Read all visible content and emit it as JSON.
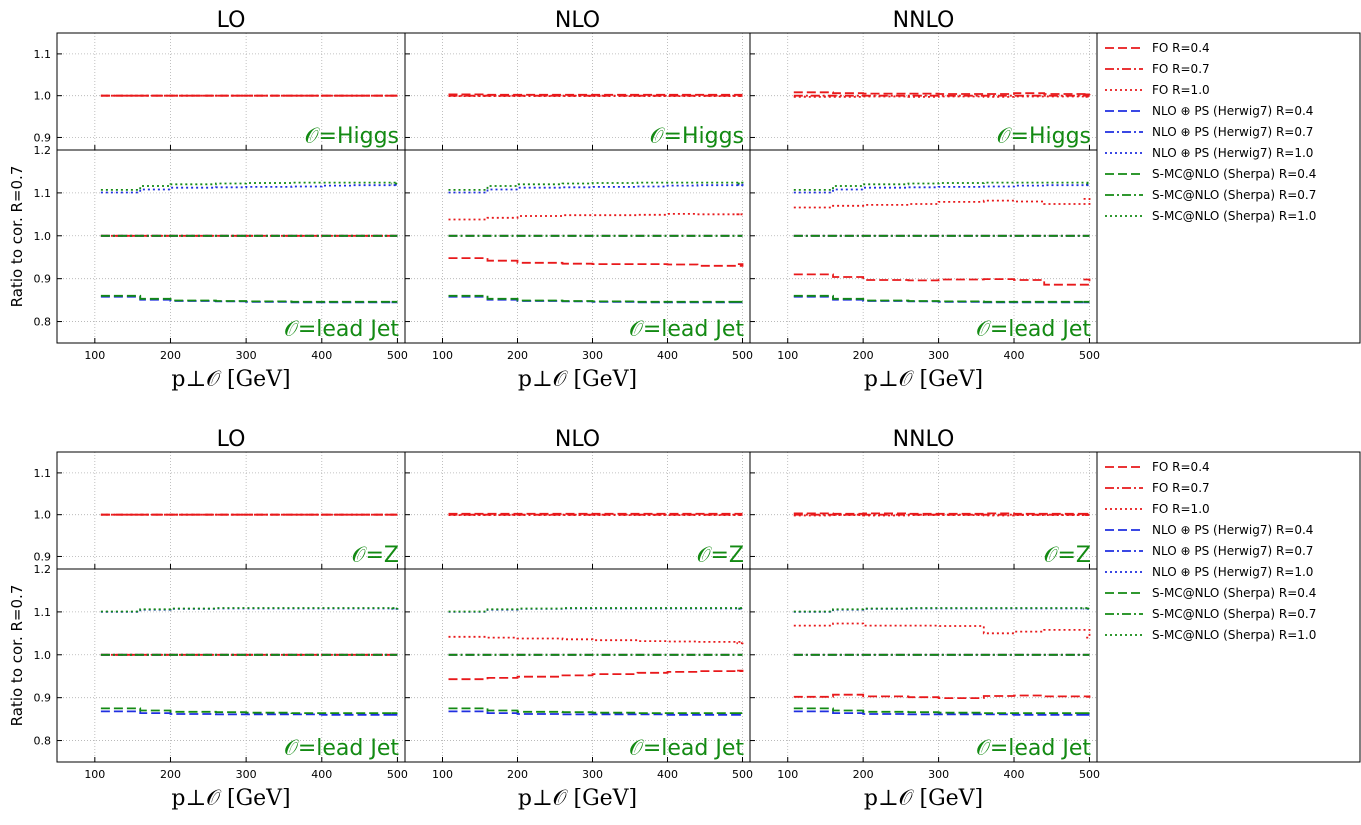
{
  "legend": {
    "entries": [
      {
        "label": "FO R=0.4",
        "color": "#e8191b",
        "dash": "dashed"
      },
      {
        "label": "FO R=0.7",
        "color": "#e8191b",
        "dash": "dashdot"
      },
      {
        "label": "FO R=1.0",
        "color": "#e8191b",
        "dash": "dotted"
      },
      {
        "label": "NLO ⊕ PS (Herwig7) R=0.4",
        "color": "#1f2fe0",
        "dash": "dashed"
      },
      {
        "label": "NLO ⊕ PS (Herwig7) R=0.7",
        "color": "#1f2fe0",
        "dash": "dashdot"
      },
      {
        "label": "NLO ⊕ PS (Herwig7) R=1.0",
        "color": "#1f2fe0",
        "dash": "dotted"
      },
      {
        "label": "S-MC@NLO (Sherpa) R=0.4",
        "color": "#138a13",
        "dash": "dashed"
      },
      {
        "label": "S-MC@NLO (Sherpa) R=0.7",
        "color": "#138a13",
        "dash": "dashdot"
      },
      {
        "label": "S-MC@NLO (Sherpa) R=1.0",
        "color": "#138a13",
        "dash": "dotted"
      }
    ]
  },
  "chart_data": [
    {
      "type": "line",
      "process": "Higgs",
      "column_titles": [
        "LO",
        "NLO",
        "NNLO"
      ],
      "ylabel": "Ratio to cor. R=0.7",
      "xlabel": "p⊥𝒪 [GeV]",
      "xlim": [
        50,
        510
      ],
      "xticks": [
        100,
        200,
        300,
        400,
        500
      ],
      "top_panel": {
        "label": "𝒪=Higgs",
        "ylim": [
          0.87,
          1.15
        ],
        "yticks": [
          0.9,
          1.0,
          1.1
        ]
      },
      "bottom_panel": {
        "label": "𝒪=lead Jet",
        "ylim": [
          0.75,
          1.2
        ],
        "yticks": [
          0.8,
          0.9,
          1.0,
          1.1,
          1.2
        ]
      },
      "x": [
        100,
        160,
        200,
        260,
        300,
        360,
        400,
        440,
        500
      ],
      "orders": {
        "LO": {
          "top": {
            "FO R=0.4": [
              1.0,
              1.0,
              1.0,
              1.0,
              1.0,
              1.0,
              1.0,
              1.0,
              1.0
            ],
            "FO R=0.7": [
              1.0,
              1.0,
              1.0,
              1.0,
              1.0,
              1.0,
              1.0,
              1.0,
              1.0
            ],
            "FO R=1.0": [
              1.0,
              1.0,
              1.0,
              1.0,
              1.0,
              1.0,
              1.0,
              1.0,
              1.0
            ]
          },
          "bottom": {
            "FO R=0.4": [
              1.0,
              1.0,
              1.0,
              1.0,
              1.0,
              1.0,
              1.0,
              1.0,
              1.0
            ],
            "FO R=0.7": [
              1.0,
              1.0,
              1.0,
              1.0,
              1.0,
              1.0,
              1.0,
              1.0,
              1.0
            ],
            "FO R=1.0": [
              1.0,
              1.0,
              1.0,
              1.0,
              1.0,
              1.0,
              1.0,
              1.0,
              1.0
            ],
            "NLO ⊕ PS (Herwig7) R=0.4": [
              0.858,
              0.851,
              0.848,
              0.847,
              0.846,
              0.845,
              0.845,
              0.845,
              0.845
            ],
            "NLO ⊕ PS (Herwig7) R=0.7": [
              1.0,
              1.0,
              1.0,
              1.0,
              1.0,
              1.0,
              1.0,
              1.0,
              1.0
            ],
            "NLO ⊕ PS (Herwig7) R=1.0": [
              1.101,
              1.108,
              1.112,
              1.113,
              1.114,
              1.115,
              1.117,
              1.118,
              1.119
            ],
            "S-MC@NLO (Sherpa) R=0.4": [
              0.86,
              0.853,
              0.849,
              0.848,
              0.847,
              0.846,
              0.846,
              0.846,
              0.846
            ],
            "S-MC@NLO (Sherpa) R=0.7": [
              1.0,
              1.0,
              1.0,
              1.0,
              1.0,
              1.0,
              1.0,
              1.0,
              1.0
            ],
            "S-MC@NLO (Sherpa) R=1.0": [
              1.107,
              1.116,
              1.12,
              1.122,
              1.123,
              1.124,
              1.124,
              1.124,
              1.122
            ]
          }
        },
        "NLO": {
          "top": {
            "FO R=0.4": [
              1.003,
              1.002,
              1.002,
              1.002,
              1.002,
              1.002,
              1.002,
              1.002,
              1.002
            ],
            "FO R=0.7": [
              1.0,
              1.0,
              1.0,
              1.0,
              1.0,
              1.0,
              1.0,
              1.0,
              1.0
            ],
            "FO R=1.0": [
              0.999,
              0.999,
              0.999,
              0.999,
              0.999,
              0.999,
              0.999,
              0.999,
              0.999
            ]
          },
          "bottom": {
            "FO R=0.4": [
              0.948,
              0.942,
              0.937,
              0.935,
              0.934,
              0.934,
              0.933,
              0.93,
              0.934
            ],
            "FO R=0.7": [
              1.0,
              1.0,
              1.0,
              1.0,
              1.0,
              1.0,
              1.0,
              1.0,
              1.0
            ],
            "FO R=1.0": [
              1.038,
              1.042,
              1.046,
              1.048,
              1.048,
              1.049,
              1.051,
              1.05,
              1.05
            ],
            "NLO ⊕ PS (Herwig7) R=0.4": [
              0.858,
              0.851,
              0.848,
              0.847,
              0.846,
              0.845,
              0.845,
              0.845,
              0.845
            ],
            "NLO ⊕ PS (Herwig7) R=0.7": [
              1.0,
              1.0,
              1.0,
              1.0,
              1.0,
              1.0,
              1.0,
              1.0,
              1.0
            ],
            "NLO ⊕ PS (Herwig7) R=1.0": [
              1.101,
              1.108,
              1.112,
              1.113,
              1.114,
              1.115,
              1.117,
              1.118,
              1.119
            ],
            "S-MC@NLO (Sherpa) R=0.4": [
              0.86,
              0.853,
              0.849,
              0.848,
              0.847,
              0.846,
              0.846,
              0.846,
              0.846
            ],
            "S-MC@NLO (Sherpa) R=0.7": [
              1.0,
              1.0,
              1.0,
              1.0,
              1.0,
              1.0,
              1.0,
              1.0,
              1.0
            ],
            "S-MC@NLO (Sherpa) R=1.0": [
              1.107,
              1.116,
              1.12,
              1.122,
              1.123,
              1.124,
              1.124,
              1.124,
              1.122
            ]
          }
        },
        "NNLO": {
          "top": {
            "FO R=0.4": [
              1.008,
              1.006,
              1.005,
              1.005,
              1.004,
              1.004,
              1.006,
              1.004,
              1.003
            ],
            "FO R=0.7": [
              1.0,
              1.0,
              1.0,
              1.0,
              1.0,
              1.0,
              1.0,
              1.0,
              1.0
            ],
            "FO R=1.0": [
              0.997,
              0.997,
              0.998,
              0.997,
              0.998,
              0.997,
              0.998,
              0.998,
              0.997
            ]
          },
          "bottom": {
            "FO R=0.4": [
              0.91,
              0.904,
              0.897,
              0.896,
              0.898,
              0.899,
              0.897,
              0.886,
              0.898
            ],
            "FO R=0.7": [
              1.0,
              1.0,
              1.0,
              1.0,
              1.0,
              1.0,
              1.0,
              1.0,
              1.0
            ],
            "FO R=1.0": [
              1.066,
              1.07,
              1.072,
              1.074,
              1.079,
              1.082,
              1.08,
              1.074,
              1.086
            ],
            "NLO ⊕ PS (Herwig7) R=0.4": [
              0.858,
              0.851,
              0.848,
              0.847,
              0.846,
              0.845,
              0.845,
              0.845,
              0.845
            ],
            "NLO ⊕ PS (Herwig7) R=0.7": [
              1.0,
              1.0,
              1.0,
              1.0,
              1.0,
              1.0,
              1.0,
              1.0,
              1.0
            ],
            "NLO ⊕ PS (Herwig7) R=1.0": [
              1.101,
              1.108,
              1.112,
              1.113,
              1.114,
              1.115,
              1.117,
              1.118,
              1.119
            ],
            "S-MC@NLO (Sherpa) R=0.4": [
              0.86,
              0.853,
              0.849,
              0.848,
              0.847,
              0.846,
              0.846,
              0.846,
              0.846
            ],
            "S-MC@NLO (Sherpa) R=0.7": [
              1.0,
              1.0,
              1.0,
              1.0,
              1.0,
              1.0,
              1.0,
              1.0,
              1.0
            ],
            "S-MC@NLO (Sherpa) R=1.0": [
              1.107,
              1.116,
              1.12,
              1.122,
              1.123,
              1.124,
              1.124,
              1.124,
              1.122
            ]
          }
        }
      }
    },
    {
      "type": "line",
      "process": "Z",
      "column_titles": [
        "LO",
        "NLO",
        "NNLO"
      ],
      "ylabel": "Ratio to cor. R=0.7",
      "xlabel": "p⊥𝒪 [GeV]",
      "xlim": [
        50,
        510
      ],
      "xticks": [
        100,
        200,
        300,
        400,
        500
      ],
      "top_panel": {
        "label": "𝒪=Z",
        "ylim": [
          0.87,
          1.15
        ],
        "yticks": [
          0.9,
          1.0,
          1.1
        ]
      },
      "bottom_panel": {
        "label": "𝒪=lead Jet",
        "ylim": [
          0.75,
          1.2
        ],
        "yticks": [
          0.8,
          0.9,
          1.0,
          1.1,
          1.2
        ]
      },
      "x": [
        100,
        160,
        200,
        260,
        300,
        360,
        400,
        440,
        500
      ],
      "orders": {
        "LO": {
          "top": {
            "FO R=0.4": [
              1.0,
              1.0,
              1.0,
              1.0,
              1.0,
              1.0,
              1.0,
              1.0,
              1.0
            ],
            "FO R=0.7": [
              1.0,
              1.0,
              1.0,
              1.0,
              1.0,
              1.0,
              1.0,
              1.0,
              1.0
            ],
            "FO R=1.0": [
              1.0,
              1.0,
              1.0,
              1.0,
              1.0,
              1.0,
              1.0,
              1.0,
              1.0
            ]
          },
          "bottom": {
            "FO R=0.4": [
              1.0,
              1.0,
              1.0,
              1.0,
              1.0,
              1.0,
              1.0,
              1.0,
              1.0
            ],
            "FO R=0.7": [
              1.0,
              1.0,
              1.0,
              1.0,
              1.0,
              1.0,
              1.0,
              1.0,
              1.0
            ],
            "FO R=1.0": [
              1.0,
              1.0,
              1.0,
              1.0,
              1.0,
              1.0,
              1.0,
              1.0,
              1.0
            ],
            "NLO ⊕ PS (Herwig7) R=0.4": [
              0.868,
              0.864,
              0.862,
              0.861,
              0.861,
              0.861,
              0.86,
              0.86,
              0.86
            ],
            "NLO ⊕ PS (Herwig7) R=0.7": [
              1.0,
              1.0,
              1.0,
              1.0,
              1.0,
              1.0,
              1.0,
              1.0,
              1.0
            ],
            "NLO ⊕ PS (Herwig7) R=1.0": [
              1.1,
              1.105,
              1.107,
              1.108,
              1.108,
              1.108,
              1.108,
              1.108,
              1.107
            ],
            "S-MC@NLO (Sherpa) R=0.4": [
              0.875,
              0.87,
              0.867,
              0.866,
              0.865,
              0.864,
              0.864,
              0.864,
              0.864
            ],
            "S-MC@NLO (Sherpa) R=0.7": [
              1.0,
              1.0,
              1.0,
              1.0,
              1.0,
              1.0,
              1.0,
              1.0,
              1.0
            ],
            "S-MC@NLO (Sherpa) R=1.0": [
              1.101,
              1.106,
              1.108,
              1.109,
              1.109,
              1.109,
              1.109,
              1.109,
              1.108
            ]
          }
        },
        "NLO": {
          "top": {
            "FO R=0.4": [
              1.002,
              1.002,
              1.002,
              1.002,
              1.002,
              1.002,
              1.002,
              1.002,
              1.002
            ],
            "FO R=0.7": [
              1.0,
              1.0,
              1.0,
              1.0,
              1.0,
              1.0,
              1.0,
              1.0,
              1.0
            ],
            "FO R=1.0": [
              0.999,
              0.999,
              0.999,
              0.999,
              0.999,
              0.999,
              0.999,
              0.999,
              0.999
            ]
          },
          "bottom": {
            "FO R=0.4": [
              0.943,
              0.946,
              0.949,
              0.952,
              0.955,
              0.958,
              0.96,
              0.962,
              0.963
            ],
            "FO R=0.7": [
              1.0,
              1.0,
              1.0,
              1.0,
              1.0,
              1.0,
              1.0,
              1.0,
              1.0
            ],
            "FO R=1.0": [
              1.042,
              1.04,
              1.038,
              1.036,
              1.034,
              1.032,
              1.031,
              1.03,
              1.027
            ],
            "NLO ⊕ PS (Herwig7) R=0.4": [
              0.868,
              0.864,
              0.862,
              0.861,
              0.861,
              0.861,
              0.86,
              0.86,
              0.86
            ],
            "NLO ⊕ PS (Herwig7) R=0.7": [
              1.0,
              1.0,
              1.0,
              1.0,
              1.0,
              1.0,
              1.0,
              1.0,
              1.0
            ],
            "NLO ⊕ PS (Herwig7) R=1.0": [
              1.1,
              1.105,
              1.107,
              1.108,
              1.108,
              1.108,
              1.108,
              1.108,
              1.107
            ],
            "S-MC@NLO (Sherpa) R=0.4": [
              0.875,
              0.87,
              0.867,
              0.866,
              0.865,
              0.864,
              0.864,
              0.864,
              0.864
            ],
            "S-MC@NLO (Sherpa) R=0.7": [
              1.0,
              1.0,
              1.0,
              1.0,
              1.0,
              1.0,
              1.0,
              1.0,
              1.0
            ],
            "S-MC@NLO (Sherpa) R=1.0": [
              1.101,
              1.106,
              1.108,
              1.109,
              1.109,
              1.109,
              1.109,
              1.109,
              1.108
            ]
          }
        },
        "NNLO": {
          "top": {
            "FO R=0.4": [
              1.003,
              1.002,
              1.003,
              1.002,
              1.002,
              1.003,
              1.002,
              1.002,
              1.002
            ],
            "FO R=0.7": [
              1.0,
              1.0,
              1.0,
              1.0,
              1.0,
              1.0,
              1.0,
              1.0,
              1.0
            ],
            "FO R=1.0": [
              0.998,
              0.999,
              0.998,
              0.999,
              0.999,
              0.998,
              0.999,
              0.999,
              0.999
            ]
          },
          "bottom": {
            "FO R=0.4": [
              0.902,
              0.907,
              0.903,
              0.901,
              0.899,
              0.904,
              0.905,
              0.903,
              0.902
            ],
            "FO R=0.7": [
              1.0,
              1.0,
              1.0,
              1.0,
              1.0,
              1.0,
              1.0,
              1.0,
              1.0
            ],
            "FO R=1.0": [
              1.068,
              1.073,
              1.068,
              1.068,
              1.067,
              1.05,
              1.054,
              1.058,
              1.04
            ],
            "NLO ⊕ PS (Herwig7) R=0.4": [
              0.868,
              0.864,
              0.862,
              0.861,
              0.861,
              0.861,
              0.86,
              0.86,
              0.86
            ],
            "NLO ⊕ PS (Herwig7) R=0.7": [
              1.0,
              1.0,
              1.0,
              1.0,
              1.0,
              1.0,
              1.0,
              1.0,
              1.0
            ],
            "NLO ⊕ PS (Herwig7) R=1.0": [
              1.1,
              1.105,
              1.107,
              1.108,
              1.108,
              1.108,
              1.108,
              1.108,
              1.107
            ],
            "S-MC@NLO (Sherpa) R=0.4": [
              0.875,
              0.87,
              0.867,
              0.866,
              0.865,
              0.864,
              0.864,
              0.864,
              0.864
            ],
            "S-MC@NLO (Sherpa) R=0.7": [
              1.0,
              1.0,
              1.0,
              1.0,
              1.0,
              1.0,
              1.0,
              1.0,
              1.0
            ],
            "S-MC@NLO (Sherpa) R=1.0": [
              1.101,
              1.106,
              1.108,
              1.109,
              1.109,
              1.109,
              1.109,
              1.109,
              1.108
            ]
          }
        }
      }
    }
  ]
}
